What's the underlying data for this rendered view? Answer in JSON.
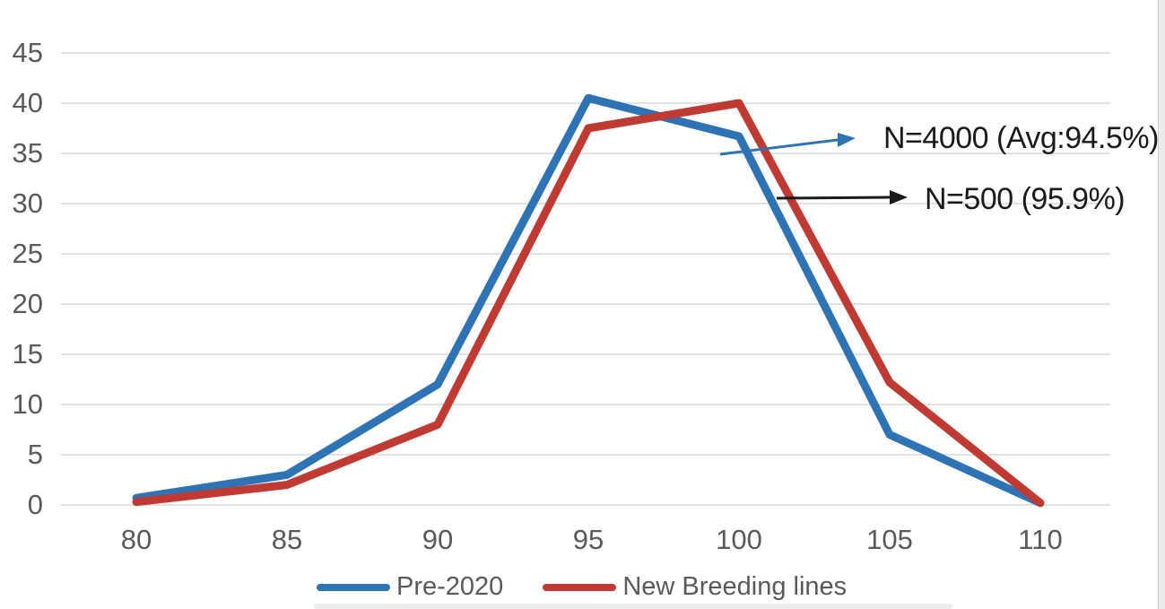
{
  "chart_data": {
    "type": "line",
    "title": "",
    "xlabel": "",
    "ylabel": "",
    "x": [
      80,
      85,
      90,
      95,
      100,
      105,
      110
    ],
    "series": [
      {
        "name": "Pre-2020",
        "color": "#2E74B5",
        "values": [
          0.7,
          3,
          12,
          40.5,
          36.7,
          7,
          0.2
        ]
      },
      {
        "name": "New Breeding lines",
        "color": "#BF3A32",
        "values": [
          0.3,
          2,
          8,
          37.5,
          40,
          12.2,
          0.2
        ]
      }
    ],
    "ylim": [
      0,
      45
    ],
    "xlim": [
      80,
      110
    ],
    "yticks": [
      45,
      40,
      35,
      30,
      25,
      20,
      15,
      10,
      5,
      0
    ],
    "xticks": [
      80,
      85,
      90,
      95,
      100,
      105,
      110
    ],
    "grid": true,
    "legend_position": "bottom",
    "annotations": [
      {
        "text": "N=4000 (Avg:94.5%)",
        "arrow_color": "#2E74B5",
        "points_to_series": "Pre-2020"
      },
      {
        "text": "N=500 (95.9%)",
        "arrow_color": "#1a1a1a",
        "points_to_series": "New Breeding lines"
      }
    ]
  },
  "colors": {
    "grid": "#D9D9D9",
    "axis_text": "#595959",
    "annotation_text": "#1A1A1A",
    "series_blue": "#2E74B5",
    "series_red": "#BF3A32"
  }
}
